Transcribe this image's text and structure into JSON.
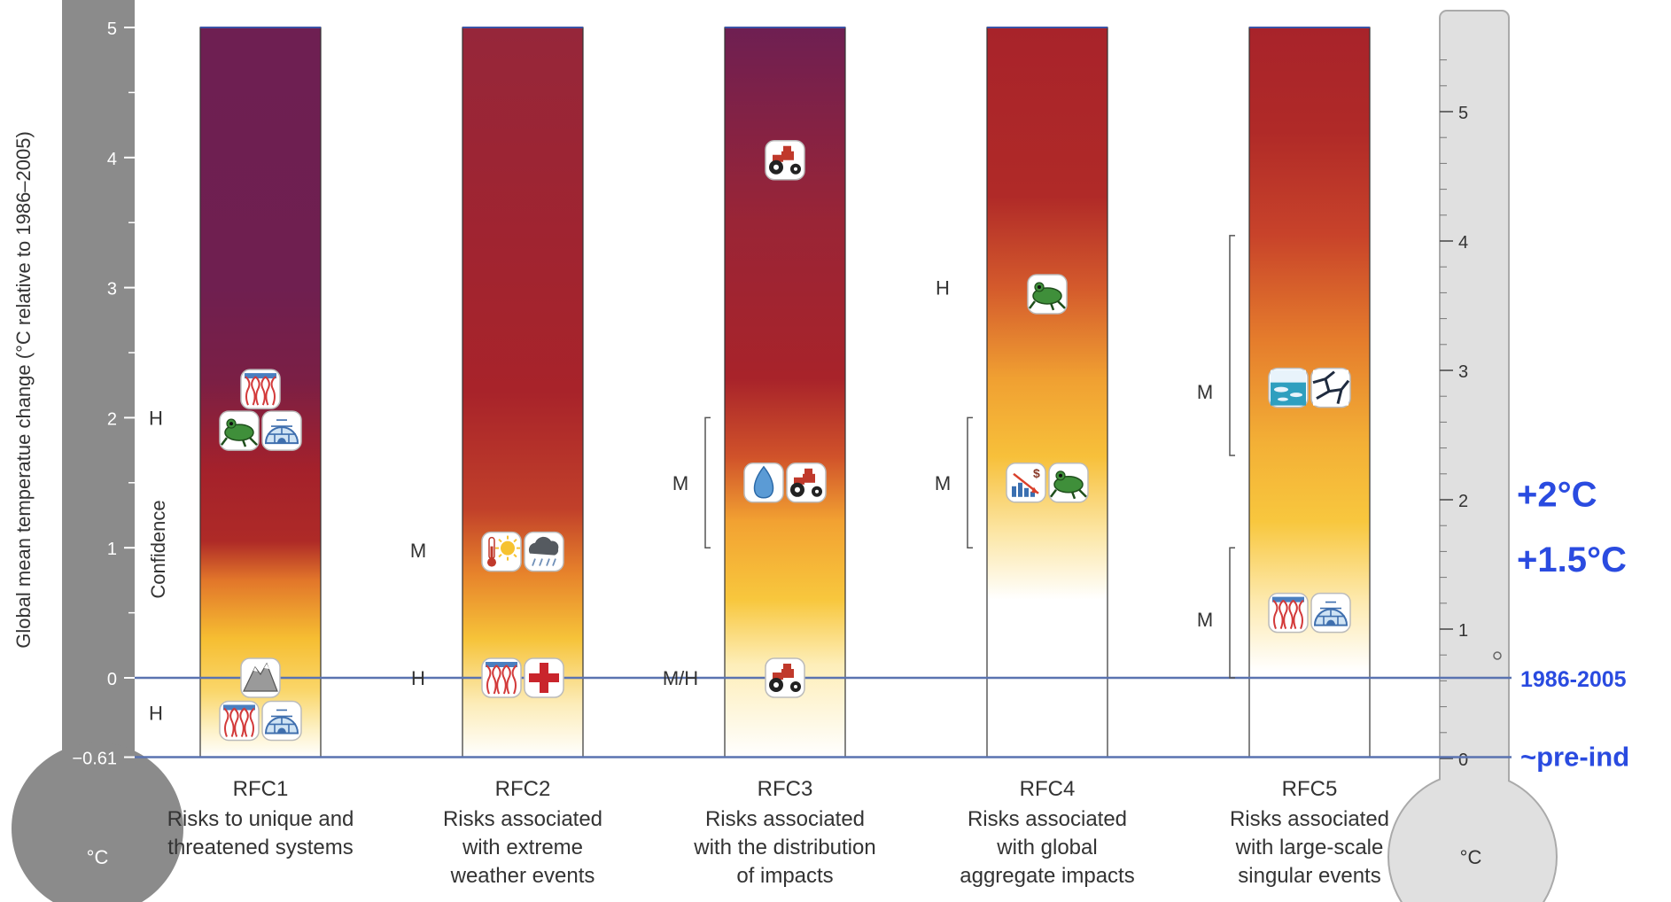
{
  "chart_data": {
    "type": "bar",
    "ylabel": "Global mean temperatue change (°C relative to 1986–2005)",
    "unit_left": "°C",
    "unit_right": "°C",
    "confidence_label": "Confidence",
    "left_axis": {
      "ylim": [
        -0.61,
        5
      ],
      "ticks": [
        {
          "value": 5,
          "label": "5"
        },
        {
          "value": 4,
          "label": "4"
        },
        {
          "value": 3,
          "label": "3"
        },
        {
          "value": 2,
          "label": "2"
        },
        {
          "value": 1,
          "label": "1"
        },
        {
          "value": 0,
          "label": "0"
        },
        {
          "value": -0.61,
          "label": "−0.61"
        }
      ]
    },
    "right_axis": {
      "ticks": [
        {
          "value": 0,
          "label": "0"
        },
        {
          "value": 1,
          "label": "1"
        },
        {
          "value": 2,
          "label": "2"
        },
        {
          "value": 3,
          "label": "3"
        },
        {
          "value": 4,
          "label": "4"
        },
        {
          "value": 5,
          "label": "5"
        }
      ]
    },
    "reference_lines": [
      {
        "value": 0,
        "label": "1986-2005"
      },
      {
        "value": -0.61,
        "label": "~pre-ind"
      }
    ],
    "highlight_labels": [
      {
        "value": 1.4,
        "label": "+2°C"
      },
      {
        "value": 0.9,
        "label": "+1.5°C"
      }
    ],
    "categories": [
      {
        "id": "RFC1",
        "label": "RFC1",
        "desc": [
          "Risks to unique and",
          "threatened systems"
        ],
        "gradient": [
          {
            "t": -0.61,
            "c": "#ffffff"
          },
          {
            "t": -0.4,
            "c": "#fdf1c6"
          },
          {
            "t": -0.1,
            "c": "#fad66a"
          },
          {
            "t": 0.3,
            "c": "#f6be32"
          },
          {
            "t": 0.75,
            "c": "#e2762a"
          },
          {
            "t": 1.05,
            "c": "#ae2a27"
          },
          {
            "t": 1.6,
            "c": "#a4212b"
          },
          {
            "t": 2.3,
            "c": "#7a1f45"
          },
          {
            "t": 3.0,
            "c": "#6f1f50"
          },
          {
            "t": 5,
            "c": "#6e1f52"
          }
        ],
        "confidence": [
          {
            "label": "H",
            "y": 2.0
          },
          {
            "label": "H",
            "y": -0.27
          }
        ],
        "icons": [
          {
            "name": "coral-icon",
            "t": 2.22,
            "dx": 0
          },
          {
            "name": "frog-icon",
            "t": 1.9,
            "dx": -24
          },
          {
            "name": "igloo-icon",
            "t": 1.9,
            "dx": 24
          },
          {
            "name": "mountain-glacier-icon",
            "t": 0.0,
            "dx": 0
          },
          {
            "name": "coral-icon",
            "t": -0.33,
            "dx": -24
          },
          {
            "name": "igloo-icon",
            "t": -0.33,
            "dx": 24
          }
        ]
      },
      {
        "id": "RFC2",
        "label": "RFC2",
        "desc": [
          "Risks associated",
          "with extreme",
          "weather events"
        ],
        "gradient": [
          {
            "t": -0.61,
            "c": "#ffffff"
          },
          {
            "t": -0.2,
            "c": "#fcecb8"
          },
          {
            "t": 0.3,
            "c": "#f6c339"
          },
          {
            "t": 0.8,
            "c": "#e7832b"
          },
          {
            "t": 1.3,
            "c": "#c1402a"
          },
          {
            "t": 2.2,
            "c": "#a8232a"
          },
          {
            "t": 4.0,
            "c": "#9c2534"
          },
          {
            "t": 5,
            "c": "#96263a"
          }
        ],
        "confidence": [
          {
            "label": "M",
            "y": 0.98
          },
          {
            "label": "H",
            "y": 0.0
          }
        ],
        "icons": [
          {
            "name": "heat-thermometer-sun-icon",
            "t": 0.97,
            "dx": -24
          },
          {
            "name": "storm-cloud-icon",
            "t": 0.97,
            "dx": 24
          },
          {
            "name": "coral-icon",
            "t": 0.0,
            "dx": -24
          },
          {
            "name": "health-cross-icon",
            "t": 0.0,
            "dx": 24
          }
        ]
      },
      {
        "id": "RFC3",
        "label": "RFC3",
        "desc": [
          "Risks associated",
          "with the distribution",
          "of impacts"
        ],
        "gradient": [
          {
            "t": -0.61,
            "c": "#ffffff"
          },
          {
            "t": 0.1,
            "c": "#fdeeb9"
          },
          {
            "t": 0.6,
            "c": "#f8c73d"
          },
          {
            "t": 1.2,
            "c": "#f2a232"
          },
          {
            "t": 1.7,
            "c": "#d0522a"
          },
          {
            "t": 2.3,
            "c": "#a8232a"
          },
          {
            "t": 3.5,
            "c": "#9a2536"
          },
          {
            "t": 5,
            "c": "#6e1f52"
          }
        ],
        "confidence": [
          {
            "label": "M",
            "y": 1.5
          },
          {
            "label": "M/H",
            "y": 0.0
          }
        ],
        "icons": [
          {
            "name": "tractor-icon",
            "t": 3.98,
            "dx": 0
          },
          {
            "name": "water-drop-icon",
            "t": 1.5,
            "dx": -24
          },
          {
            "name": "tractor-icon",
            "t": 1.5,
            "dx": 24
          },
          {
            "name": "tractor-icon",
            "t": 0.0,
            "dx": 0
          }
        ]
      },
      {
        "id": "RFC4",
        "label": "RFC4",
        "desc": [
          "Risks associated",
          "with global",
          "aggregate impacts"
        ],
        "gradient": [
          {
            "t": -0.61,
            "c": "#ffffff"
          },
          {
            "t": 0.6,
            "c": "#ffffff"
          },
          {
            "t": 1.1,
            "c": "#fce7a8"
          },
          {
            "t": 1.7,
            "c": "#f7c03a"
          },
          {
            "t": 2.3,
            "c": "#f0a032"
          },
          {
            "t": 3.0,
            "c": "#d45a2c"
          },
          {
            "t": 3.7,
            "c": "#b02a28"
          },
          {
            "t": 5,
            "c": "#a8232a"
          }
        ],
        "confidence": [
          {
            "label": "H",
            "y": 3.0
          },
          {
            "label": "M",
            "y": 1.5
          }
        ],
        "icons": [
          {
            "name": "frog-icon",
            "t": 2.95,
            "dx": 0
          },
          {
            "name": "economic-decline-icon",
            "t": 1.5,
            "dx": -24
          },
          {
            "name": "frog-icon",
            "t": 1.5,
            "dx": 24
          }
        ]
      },
      {
        "id": "RFC5",
        "label": "RFC5",
        "desc": [
          "Risks associated",
          "with large-scale",
          "singular events"
        ],
        "gradient": [
          {
            "t": -0.61,
            "c": "#ffffff"
          },
          {
            "t": 0.05,
            "c": "#ffffff"
          },
          {
            "t": 0.6,
            "c": "#fde9ad"
          },
          {
            "t": 1.2,
            "c": "#f8c73e"
          },
          {
            "t": 1.8,
            "c": "#f3b036"
          },
          {
            "t": 2.6,
            "c": "#e57c2c"
          },
          {
            "t": 3.4,
            "c": "#c8432a"
          },
          {
            "t": 4.2,
            "c": "#b02a28"
          },
          {
            "t": 5,
            "c": "#a8232a"
          }
        ],
        "confidence": [
          {
            "label": "M",
            "y": 2.2
          },
          {
            "label": "M",
            "y": 0.45
          }
        ],
        "icons": [
          {
            "name": "sea-ice-icon",
            "t": 2.23,
            "dx": -24
          },
          {
            "name": "ice-sheet-icon",
            "t": 2.23,
            "dx": 24
          },
          {
            "name": "coral-icon",
            "t": 0.5,
            "dx": -24
          },
          {
            "name": "igloo-icon",
            "t": 0.5,
            "dx": 24
          }
        ]
      }
    ],
    "brackets": [
      {
        "rfc": "RFC3",
        "from": 1.0,
        "to": 2.0
      },
      {
        "rfc": "RFC4",
        "from": 1.0,
        "to": 2.0
      },
      {
        "rfc": "RFC5",
        "from": 1.71,
        "to": 3.4
      },
      {
        "rfc": "RFC5",
        "from": 0.0,
        "to": 1.0
      }
    ],
    "colors": {
      "ref_line": "#5a73b0",
      "highlight": "#2a4be0",
      "left_thermometer": "#8b8b8b",
      "right_thermometer": "#e0e0e0"
    }
  }
}
